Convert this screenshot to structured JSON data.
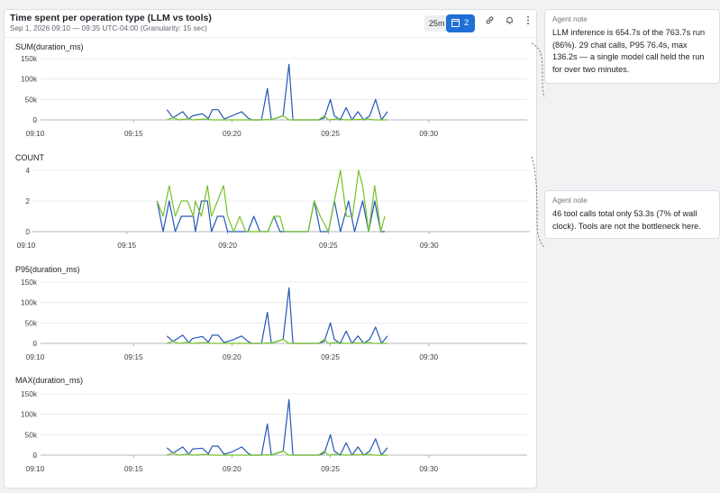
{
  "panel": {
    "title": "Time spent per operation type (LLM vs tools)",
    "subtitle": "Sep 1, 2026 09:10 — 09:35 UTC-04:00 (Granularity: 15 sec)",
    "toolbar": {
      "range_label": "25m",
      "calendar_count": "2",
      "link_icon": "link-icon",
      "alert_icon": "alert-icon",
      "more_icon": "more-vertical-icon"
    }
  },
  "colors": {
    "llm": "#2457b8",
    "tool": "#77c228",
    "grid": "#e4e6ea",
    "axis": "#9aa0a8"
  },
  "notes": [
    {
      "label": "Agent note",
      "text": "LLM inference is 654.7s of the 763.7s run (86%). 29 chat calls, P95 76.4s, max 136.2s — a single model call held the run for over two minutes."
    },
    {
      "label": "Agent note",
      "text": "46 tool calls total only 53.3s (7% of wall clock). Tools are not the bottleneck here."
    }
  ],
  "chart_data": [
    {
      "type": "line",
      "title": "SUM(duration_ms)",
      "x_ticks": [
        "09:10",
        "09:15",
        "09:20",
        "09:25",
        "09:30"
      ],
      "y_ticks": [
        "0",
        "50k",
        "100k",
        "150k"
      ],
      "ylim": [
        0,
        150000
      ],
      "series": [
        {
          "values": [
            [
              16.7,
              25000
            ],
            [
              17.0,
              5000
            ],
            [
              17.5,
              20000
            ],
            [
              17.8,
              2000
            ],
            [
              18.0,
              10000
            ],
            [
              18.5,
              15000
            ],
            [
              18.8,
              3000
            ],
            [
              19.0,
              25000
            ],
            [
              19.3,
              25000
            ],
            [
              19.6,
              2000
            ],
            [
              20.0,
              10000
            ],
            [
              20.5,
              20000
            ],
            [
              20.8,
              5000
            ],
            [
              21.0,
              0
            ],
            [
              21.5,
              0
            ],
            [
              21.8,
              77000
            ],
            [
              22.0,
              0
            ],
            [
              22.6,
              10000
            ],
            [
              22.9,
              136000
            ],
            [
              23.1,
              0
            ],
            [
              24.4,
              0
            ],
            [
              24.7,
              5000
            ],
            [
              25.0,
              50000
            ],
            [
              25.2,
              10000
            ],
            [
              25.5,
              0
            ],
            [
              25.8,
              30000
            ],
            [
              26.1,
              0
            ],
            [
              26.4,
              20000
            ],
            [
              26.7,
              0
            ],
            [
              27.0,
              10000
            ],
            [
              27.3,
              50000
            ],
            [
              27.6,
              0
            ],
            [
              27.9,
              20000
            ]
          ]
        },
        {
          "values": [
            [
              16.7,
              0
            ],
            [
              17.0,
              5000
            ],
            [
              17.3,
              0
            ],
            [
              17.8,
              3000
            ],
            [
              18.0,
              0
            ],
            [
              18.6,
              2000
            ],
            [
              19.0,
              0
            ],
            [
              21.5,
              0
            ],
            [
              21.8,
              1000
            ],
            [
              22.0,
              0
            ],
            [
              22.6,
              10000
            ],
            [
              22.9,
              0
            ],
            [
              24.4,
              0
            ],
            [
              24.7,
              10000
            ],
            [
              24.9,
              0
            ],
            [
              25.5,
              3000
            ],
            [
              25.7,
              0
            ],
            [
              27.0,
              2000
            ],
            [
              27.2,
              0
            ],
            [
              27.9,
              0
            ]
          ]
        }
      ]
    },
    {
      "type": "line",
      "title": "COUNT",
      "x_ticks": [
        "09:10",
        "09:15",
        "09:20",
        "09:25",
        "09:30"
      ],
      "y_ticks": [
        "0",
        "2",
        "4"
      ],
      "ylim": [
        0,
        4
      ],
      "series": [
        {
          "values": [
            [
              16.5,
              2
            ],
            [
              16.8,
              0
            ],
            [
              17.1,
              2
            ],
            [
              17.4,
              0
            ],
            [
              17.7,
              1
            ],
            [
              18.0,
              1
            ],
            [
              18.3,
              1
            ],
            [
              18.4,
              0
            ],
            [
              18.7,
              2
            ],
            [
              19.0,
              2
            ],
            [
              19.2,
              0
            ],
            [
              19.5,
              1
            ],
            [
              19.8,
              1
            ],
            [
              20.0,
              0
            ],
            [
              21.0,
              0
            ],
            [
              21.3,
              1
            ],
            [
              21.6,
              0
            ],
            [
              22.0,
              0
            ],
            [
              22.3,
              1
            ],
            [
              22.6,
              0
            ],
            [
              24.0,
              0
            ],
            [
              24.3,
              2
            ],
            [
              24.6,
              0
            ],
            [
              25.0,
              0
            ],
            [
              25.3,
              2
            ],
            [
              25.6,
              0
            ],
            [
              26.0,
              2
            ],
            [
              26.3,
              0
            ],
            [
              26.7,
              2
            ],
            [
              27.0,
              0
            ],
            [
              27.3,
              2
            ],
            [
              27.6,
              0
            ],
            [
              27.8,
              0
            ]
          ]
        },
        {
          "values": [
            [
              16.5,
              2
            ],
            [
              16.8,
              1
            ],
            [
              17.1,
              3
            ],
            [
              17.4,
              1
            ],
            [
              17.7,
              2
            ],
            [
              18.0,
              2
            ],
            [
              18.3,
              1
            ],
            [
              18.4,
              2
            ],
            [
              18.7,
              1
            ],
            [
              19.0,
              3
            ],
            [
              19.2,
              1
            ],
            [
              19.5,
              2
            ],
            [
              19.8,
              3
            ],
            [
              20.0,
              1
            ],
            [
              20.3,
              0
            ],
            [
              20.6,
              1
            ],
            [
              20.9,
              0
            ],
            [
              22.0,
              0
            ],
            [
              22.3,
              1
            ],
            [
              22.6,
              1
            ],
            [
              22.8,
              0
            ],
            [
              24.0,
              0
            ],
            [
              24.3,
              2
            ],
            [
              24.6,
              1
            ],
            [
              25.0,
              0
            ],
            [
              25.3,
              2
            ],
            [
              25.6,
              4
            ],
            [
              25.9,
              1
            ],
            [
              26.2,
              1
            ],
            [
              26.5,
              4
            ],
            [
              26.7,
              3
            ],
            [
              27.0,
              0
            ],
            [
              27.3,
              3
            ],
            [
              27.6,
              0
            ],
            [
              27.8,
              1
            ]
          ]
        }
      ]
    },
    {
      "type": "line",
      "title": "P95(duration_ms)",
      "x_ticks": [
        "09:10",
        "09:15",
        "09:20",
        "09:25",
        "09:30"
      ],
      "y_ticks": [
        "0",
        "50k",
        "100k",
        "150k"
      ],
      "ylim": [
        0,
        150000
      ],
      "series": [
        {
          "values": [
            [
              16.7,
              18000
            ],
            [
              17.0,
              5000
            ],
            [
              17.5,
              20000
            ],
            [
              17.8,
              2000
            ],
            [
              18.0,
              12000
            ],
            [
              18.5,
              17000
            ],
            [
              18.8,
              3000
            ],
            [
              19.0,
              20000
            ],
            [
              19.3,
              20000
            ],
            [
              19.6,
              2000
            ],
            [
              20.0,
              8000
            ],
            [
              20.5,
              18000
            ],
            [
              20.8,
              5000
            ],
            [
              21.0,
              0
            ],
            [
              21.5,
              0
            ],
            [
              21.8,
              76000
            ],
            [
              22.0,
              0
            ],
            [
              22.6,
              10000
            ],
            [
              22.9,
              136000
            ],
            [
              23.1,
              0
            ],
            [
              24.4,
              0
            ],
            [
              24.7,
              5000
            ],
            [
              25.0,
              50000
            ],
            [
              25.2,
              10000
            ],
            [
              25.5,
              0
            ],
            [
              25.8,
              30000
            ],
            [
              26.1,
              0
            ],
            [
              26.4,
              18000
            ],
            [
              26.7,
              0
            ],
            [
              27.0,
              10000
            ],
            [
              27.3,
              40000
            ],
            [
              27.6,
              0
            ],
            [
              27.9,
              18000
            ]
          ]
        },
        {
          "values": [
            [
              16.7,
              0
            ],
            [
              17.0,
              5000
            ],
            [
              17.3,
              0
            ],
            [
              17.8,
              3000
            ],
            [
              18.0,
              0
            ],
            [
              18.6,
              2000
            ],
            [
              19.0,
              0
            ],
            [
              21.5,
              0
            ],
            [
              21.8,
              1000
            ],
            [
              22.0,
              0
            ],
            [
              22.6,
              10000
            ],
            [
              22.9,
              0
            ],
            [
              24.4,
              0
            ],
            [
              24.7,
              10000
            ],
            [
              24.9,
              0
            ],
            [
              25.5,
              3000
            ],
            [
              25.7,
              0
            ],
            [
              27.0,
              2000
            ],
            [
              27.2,
              0
            ],
            [
              27.9,
              0
            ]
          ]
        }
      ]
    },
    {
      "type": "line",
      "title": "MAX(duration_ms)",
      "x_ticks": [
        "09:10",
        "09:15",
        "09:20",
        "09:25",
        "09:30"
      ],
      "y_ticks": [
        "0",
        "50k",
        "100k",
        "150k"
      ],
      "ylim": [
        0,
        150000
      ],
      "series": [
        {
          "values": [
            [
              16.7,
              18000
            ],
            [
              17.0,
              5000
            ],
            [
              17.5,
              20000
            ],
            [
              17.8,
              2000
            ],
            [
              18.0,
              15000
            ],
            [
              18.5,
              17000
            ],
            [
              18.8,
              3000
            ],
            [
              19.0,
              22000
            ],
            [
              19.3,
              22000
            ],
            [
              19.6,
              2000
            ],
            [
              20.0,
              8000
            ],
            [
              20.5,
              20000
            ],
            [
              20.8,
              5000
            ],
            [
              21.0,
              0
            ],
            [
              21.5,
              0
            ],
            [
              21.8,
              76000
            ],
            [
              22.0,
              0
            ],
            [
              22.6,
              10000
            ],
            [
              22.9,
              136000
            ],
            [
              23.1,
              0
            ],
            [
              24.4,
              0
            ],
            [
              24.7,
              5000
            ],
            [
              25.0,
              50000
            ],
            [
              25.2,
              10000
            ],
            [
              25.5,
              0
            ],
            [
              25.8,
              30000
            ],
            [
              26.1,
              0
            ],
            [
              26.4,
              20000
            ],
            [
              26.7,
              0
            ],
            [
              27.0,
              10000
            ],
            [
              27.3,
              40000
            ],
            [
              27.6,
              0
            ],
            [
              27.9,
              18000
            ]
          ]
        },
        {
          "values": [
            [
              16.7,
              0
            ],
            [
              17.0,
              5000
            ],
            [
              17.3,
              0
            ],
            [
              17.8,
              3000
            ],
            [
              18.0,
              0
            ],
            [
              18.6,
              2000
            ],
            [
              19.0,
              0
            ],
            [
              21.5,
              0
            ],
            [
              21.8,
              1000
            ],
            [
              22.0,
              0
            ],
            [
              22.6,
              10000
            ],
            [
              22.9,
              0
            ],
            [
              24.4,
              0
            ],
            [
              24.7,
              10000
            ],
            [
              24.9,
              0
            ],
            [
              25.5,
              3000
            ],
            [
              25.7,
              0
            ],
            [
              27.0,
              2000
            ],
            [
              27.2,
              0
            ],
            [
              27.9,
              0
            ]
          ]
        }
      ]
    }
  ]
}
